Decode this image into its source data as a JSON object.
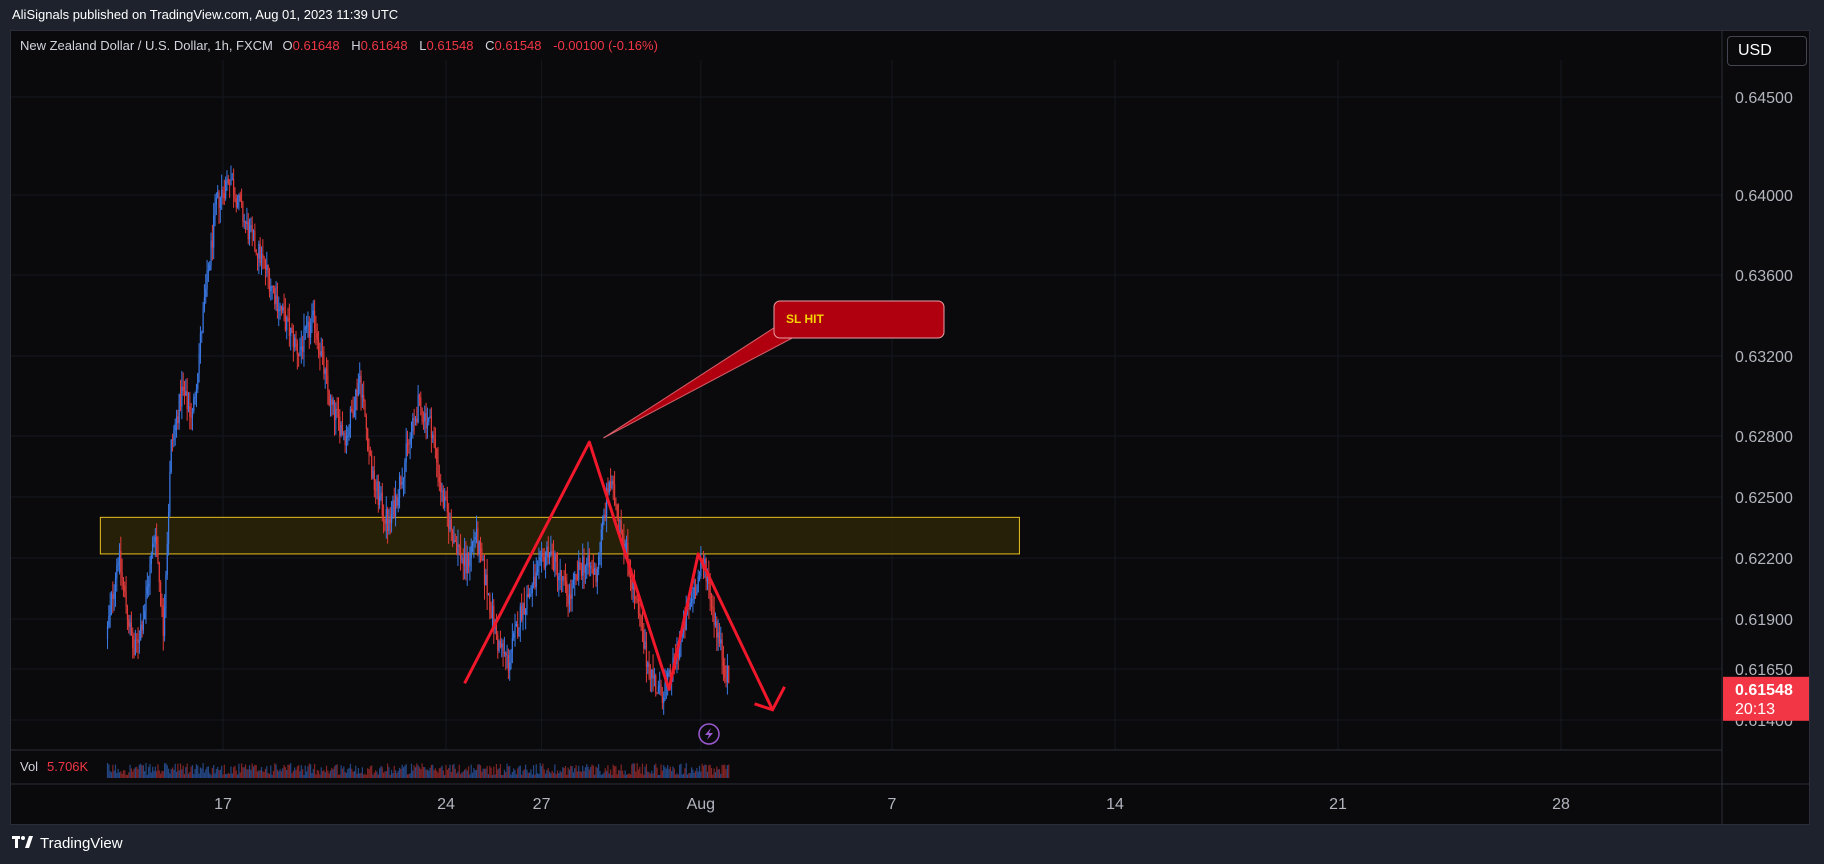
{
  "header": {
    "publish_note": "AliSignals published on TradingView.com, Aug 01, 2023 11:39 UTC"
  },
  "legend": {
    "symbol": "New Zealand Dollar / U.S. Dollar, 1h, FXCM",
    "o_label": "O",
    "o_value": "0.61648",
    "h_label": "H",
    "h_value": "0.61648",
    "l_label": "L",
    "l_value": "0.61548",
    "c_label": "C",
    "c_value": "0.61548",
    "change": "-0.00100 (-0.16%)"
  },
  "currency_button": {
    "label": "USD"
  },
  "volume": {
    "label": "Vol",
    "value": "5.706K"
  },
  "annotation": {
    "label": "SL HIT"
  },
  "last_price": {
    "price": "0.61548",
    "countdown": "20:13"
  },
  "footer": {
    "brand": "TradingView",
    "logo": "tradingview-logo"
  },
  "colors": {
    "up": "#3a79e6",
    "down": "#e23a3a",
    "accent": "#f23645",
    "zone_border": "#e8c020",
    "zone_fill": "#2b2408",
    "callout_fill": "#b00010",
    "callout_text": "#f5d300",
    "background": "#0a0a0c"
  },
  "chart_data": {
    "type": "candlestick",
    "title": "New Zealand Dollar / U.S. Dollar, 1h, FXCM",
    "y_ticks": [
      "0.64500",
      "0.64000",
      "0.63600",
      "0.63200",
      "0.62800",
      "0.62500",
      "0.62200",
      "0.61900",
      "0.61650",
      "0.61400"
    ],
    "x_ticks": [
      "17",
      "24",
      "27",
      "Aug",
      "7",
      "14",
      "21",
      "28"
    ],
    "ylim": [
      0.6138,
      0.6463
    ],
    "price_path": [
      {
        "x": "Jul 13 09:00",
        "y": 0.618
      },
      {
        "x": "Jul 13 18:00",
        "y": 0.6222
      },
      {
        "x": "Jul 14 06:00",
        "y": 0.6172
      },
      {
        "x": "Jul 14 14:00",
        "y": 0.6195
      },
      {
        "x": "Jul 14 22:00",
        "y": 0.6235
      },
      {
        "x": "Jul 15 04:00",
        "y": 0.6185
      },
      {
        "x": "Jul 15 10:00",
        "y": 0.6275
      },
      {
        "x": "Jul 15 18:00",
        "y": 0.6302
      },
      {
        "x": "Jul 16 02:00",
        "y": 0.629
      },
      {
        "x": "Jul 16 10:00",
        "y": 0.634
      },
      {
        "x": "Jul 16 20:00",
        "y": 0.6395
      },
      {
        "x": "Jul 17 06:00",
        "y": 0.641
      },
      {
        "x": "Jul 17 18:00",
        "y": 0.6385
      },
      {
        "x": "Jul 18 08:00",
        "y": 0.6365
      },
      {
        "x": "Jul 18 22:00",
        "y": 0.634
      },
      {
        "x": "Jul 19 10:00",
        "y": 0.6322
      },
      {
        "x": "Jul 19 22:00",
        "y": 0.6338
      },
      {
        "x": "Jul 20 10:00",
        "y": 0.6295
      },
      {
        "x": "Jul 20 22:00",
        "y": 0.628
      },
      {
        "x": "Jul 21 08:00",
        "y": 0.631
      },
      {
        "x": "Jul 21 18:00",
        "y": 0.6258
      },
      {
        "x": "Jul 22 06:00",
        "y": 0.6235
      },
      {
        "x": "Jul 22 18:00",
        "y": 0.6268
      },
      {
        "x": "Jul 23 04:00",
        "y": 0.6295
      },
      {
        "x": "Jul 23 14:00",
        "y": 0.6285
      },
      {
        "x": "Jul 23 22:00",
        "y": 0.625
      },
      {
        "x": "Jul 24 06:00",
        "y": 0.6232
      },
      {
        "x": "Jul 24 16:00",
        "y": 0.6215
      },
      {
        "x": "Jul 24 23:00",
        "y": 0.6232
      },
      {
        "x": "Jul 25 08:00",
        "y": 0.6205
      },
      {
        "x": "Jul 25 16:00",
        "y": 0.6178
      },
      {
        "x": "Jul 26 00:00",
        "y": 0.6168
      },
      {
        "x": "Jul 26 10:00",
        "y": 0.6195
      },
      {
        "x": "Jul 26 20:00",
        "y": 0.6208
      },
      {
        "x": "Jul 27 06:00",
        "y": 0.6225
      },
      {
        "x": "Jul 27 14:00",
        "y": 0.6212
      },
      {
        "x": "Jul 27 22:00",
        "y": 0.62
      },
      {
        "x": "Jul 28 08:00",
        "y": 0.6218
      },
      {
        "x": "Jul 28 18:00",
        "y": 0.6212
      },
      {
        "x": "Jul 29 04:00",
        "y": 0.6258
      },
      {
        "x": "Jul 29 12:00",
        "y": 0.624
      },
      {
        "x": "Jul 29 22:00",
        "y": 0.6205
      },
      {
        "x": "Jul 30 08:00",
        "y": 0.617
      },
      {
        "x": "Jul 30 18:00",
        "y": 0.6152
      },
      {
        "x": "Jul 31 02:00",
        "y": 0.616
      },
      {
        "x": "Jul 31 10:00",
        "y": 0.618
      },
      {
        "x": "Jul 31 20:00",
        "y": 0.6205
      },
      {
        "x": "Aug 01 04:00",
        "y": 0.6218
      },
      {
        "x": "Aug 01 10:00",
        "y": 0.6195
      },
      {
        "x": "Aug 01 16:00",
        "y": 0.6175
      },
      {
        "x": "Aug 01 22:00",
        "y": 0.6158
      }
    ],
    "zone": {
      "type": "support_resistance",
      "y_low": 0.6222,
      "y_high": 0.624,
      "x_start": "Jul 13",
      "x_end": "Aug 11"
    },
    "pattern_lines": [
      {
        "x": "Jul 24 14:00",
        "y": 0.6158
      },
      {
        "x": "Jul 28 12:00",
        "y": 0.6277
      },
      {
        "x": "Jul 31 00:00",
        "y": 0.6155
      },
      {
        "x": "Jul 31 22:00",
        "y": 0.6222
      },
      {
        "x": "Aug 03 06:00",
        "y": 0.6145
      }
    ],
    "annotations": [
      {
        "text": "SL HIT",
        "points_to": {
          "x": "Jul 28 12:00",
          "y": 0.6277
        }
      }
    ],
    "volume_label": "Vol",
    "volume_value": "5.706K",
    "last_price": 0.61548,
    "grid": true
  }
}
